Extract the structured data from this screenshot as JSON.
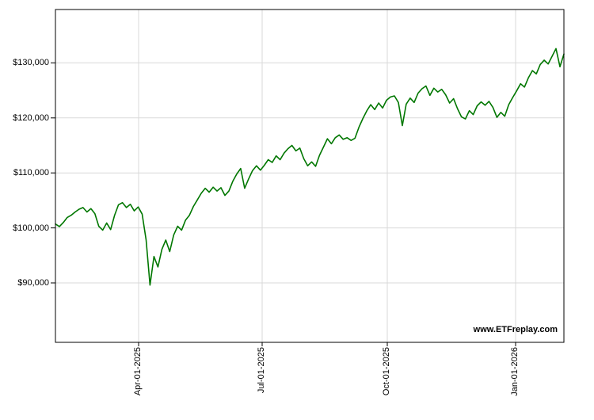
{
  "chart_data": {
    "type": "line",
    "watermark": "www.ETFreplay.com",
    "line_color": "#007700",
    "grid_color": "#d9d9d9",
    "axis_color": "#000000",
    "grid": true,
    "legend": "none",
    "ylim": [
      79200,
      139700
    ],
    "y_ticks": [
      {
        "label": "$90,000",
        "value": 90000
      },
      {
        "label": "$100,000",
        "value": 100000
      },
      {
        "label": "$110,000",
        "value": 110000
      },
      {
        "label": "$120,000",
        "value": 120000
      },
      {
        "label": "$130,000",
        "value": 130000
      }
    ],
    "x_ticks": [
      {
        "label": "Apr-01-2025",
        "pos": 0.1636
      },
      {
        "label": "Jul-01-2025",
        "pos": 0.4065
      },
      {
        "label": "Oct-01-2025",
        "pos": 0.6526
      },
      {
        "label": "Jan-01-2026",
        "pos": 0.905
      }
    ],
    "x_spacing": "uniform-trading-days",
    "series": [
      {
        "name": "series-1",
        "values": [
          100700,
          100250,
          101000,
          101900,
          102300,
          102900,
          103400,
          103700,
          102900,
          103500,
          102600,
          100300,
          99600,
          100900,
          99700,
          102300,
          104200,
          104600,
          103700,
          104300,
          103100,
          103800,
          102500,
          97800,
          89600,
          94800,
          92900,
          96100,
          97800,
          95700,
          98700,
          100300,
          99600,
          101400,
          102300,
          103900,
          105100,
          106300,
          107200,
          106500,
          107400,
          106700,
          107300,
          105900,
          106700,
          108500,
          109800,
          110800,
          107200,
          108900,
          110400,
          111300,
          110500,
          111400,
          112400,
          111900,
          113100,
          112400,
          113600,
          114400,
          115000,
          114000,
          114500,
          112600,
          111300,
          112000,
          111200,
          113200,
          114700,
          116200,
          115300,
          116400,
          116900,
          116100,
          116400,
          115900,
          116300,
          118300,
          119900,
          121300,
          122400,
          121500,
          122700,
          121800,
          123200,
          123800,
          124000,
          122800,
          118600,
          122500,
          123600,
          122800,
          124500,
          125300,
          125800,
          124100,
          125400,
          124700,
          125200,
          124200,
          122700,
          123500,
          121700,
          120200,
          119800,
          121300,
          120600,
          122200,
          122900,
          122300,
          123000,
          121900,
          120100,
          121000,
          120300,
          122400,
          123700,
          124900,
          126200,
          125600,
          127300,
          128600,
          128000,
          129700,
          130500,
          129800,
          131200,
          132600,
          129300,
          131600
        ]
      }
    ]
  }
}
